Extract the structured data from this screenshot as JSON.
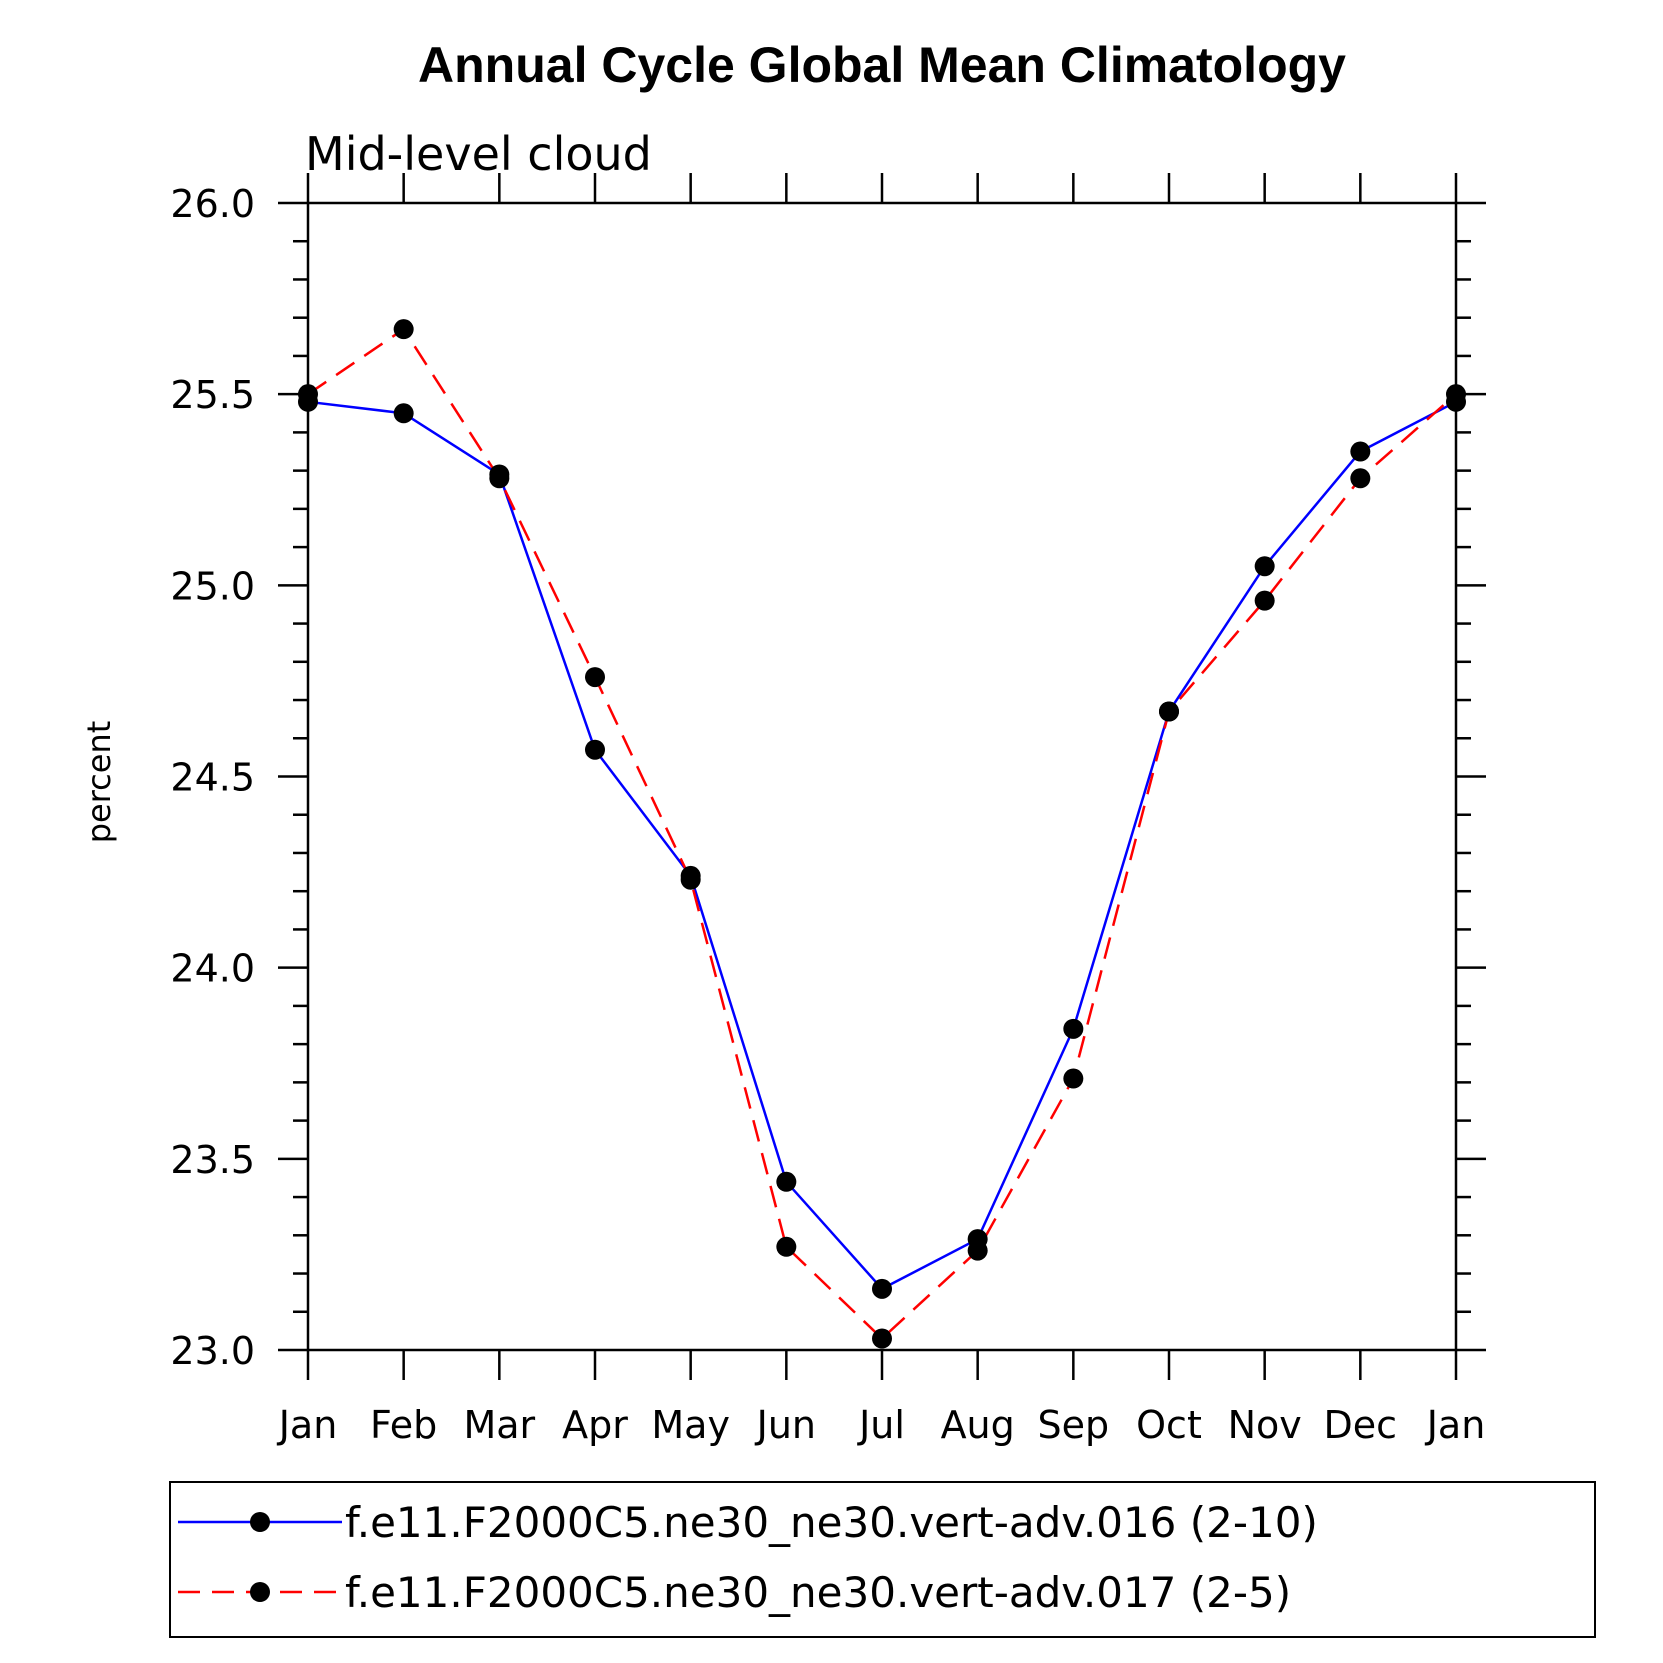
{
  "chart_data": {
    "type": "line",
    "title": "Annual Cycle Global Mean Climatology",
    "subtitle": "Mid-level cloud",
    "xlabel": "",
    "ylabel": "percent",
    "categories": [
      "Jan",
      "Feb",
      "Mar",
      "Apr",
      "May",
      "Jun",
      "Jul",
      "Aug",
      "Sep",
      "Oct",
      "Nov",
      "Dec",
      "Jan"
    ],
    "ylim": [
      23.0,
      26.0
    ],
    "yticks": [
      "23.0",
      "23.5",
      "24.0",
      "24.5",
      "25.0",
      "25.5",
      "26.0"
    ],
    "grid": false,
    "legend_position": "bottom",
    "series": [
      {
        "name": "f.e11.F2000C5.ne30_ne30.vert-adv.016 (2-10)",
        "color": "#0000ff",
        "style": "solid",
        "values": [
          25.48,
          25.45,
          25.29,
          24.57,
          24.24,
          23.44,
          23.16,
          23.29,
          23.84,
          24.67,
          25.05,
          25.35,
          25.48
        ]
      },
      {
        "name": "f.e11.F2000C5.ne30_ne30.vert-adv.017 (2-5)",
        "color": "#ff0000",
        "style": "dashed",
        "values": [
          25.5,
          25.67,
          25.28,
          24.76,
          24.23,
          23.27,
          23.03,
          23.26,
          23.71,
          24.67,
          24.96,
          25.28,
          25.5
        ]
      }
    ],
    "marker_color": "#000000"
  }
}
